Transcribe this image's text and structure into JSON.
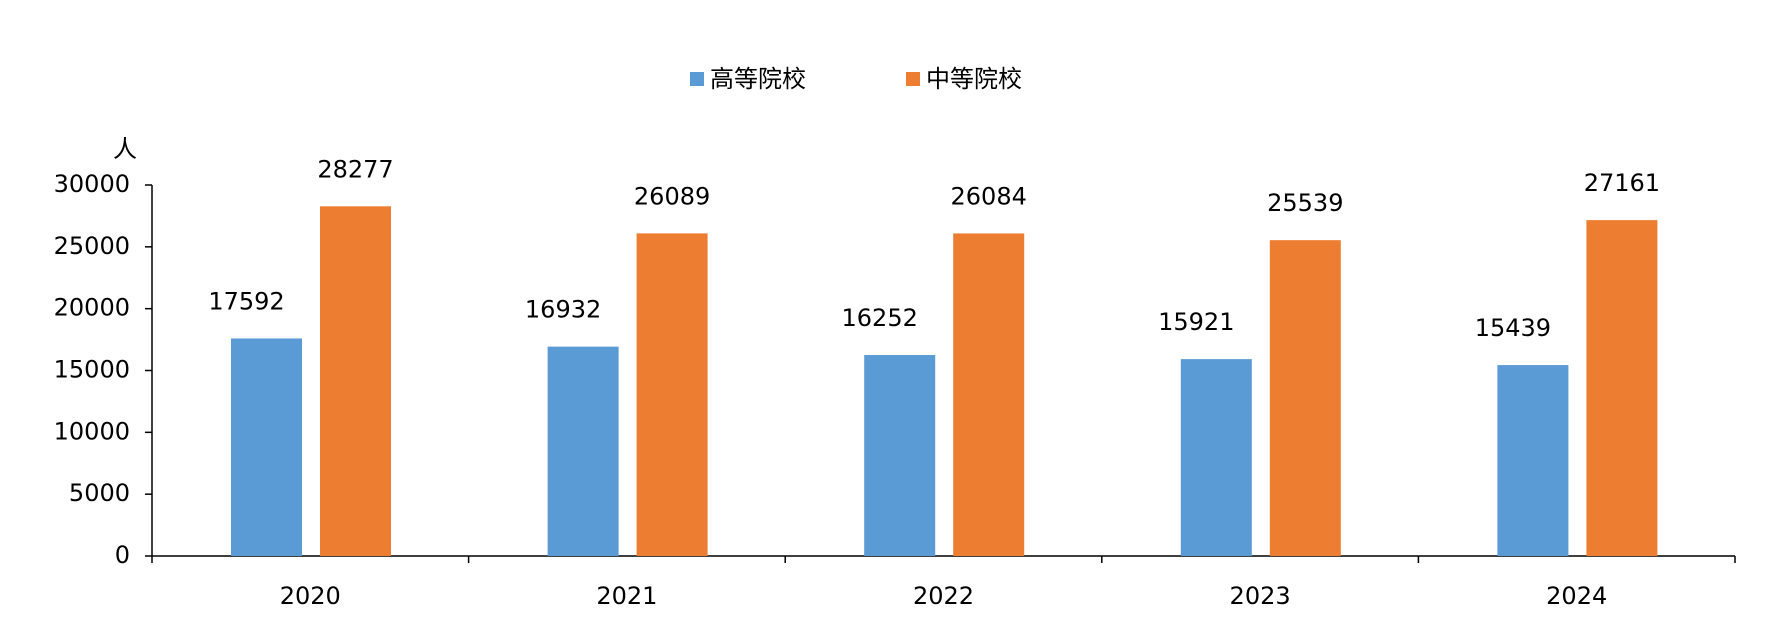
{
  "chart_data": {
    "type": "bar",
    "y_label": "人",
    "categories": [
      "2020",
      "2021",
      "2022",
      "2023",
      "2024"
    ],
    "series": [
      {
        "name": "高等院校",
        "color": "#5b9bd5",
        "values": [
          17592,
          16932,
          16252,
          15921,
          15439
        ]
      },
      {
        "name": "中等院校",
        "color": "#ed7d31",
        "values": [
          28277,
          26089,
          26084,
          25539,
          27161
        ]
      }
    ],
    "ylim": [
      0,
      30000
    ],
    "yticks": [
      0,
      5000,
      10000,
      15000,
      20000,
      25000,
      30000
    ],
    "legend": "top",
    "grid": false
  }
}
